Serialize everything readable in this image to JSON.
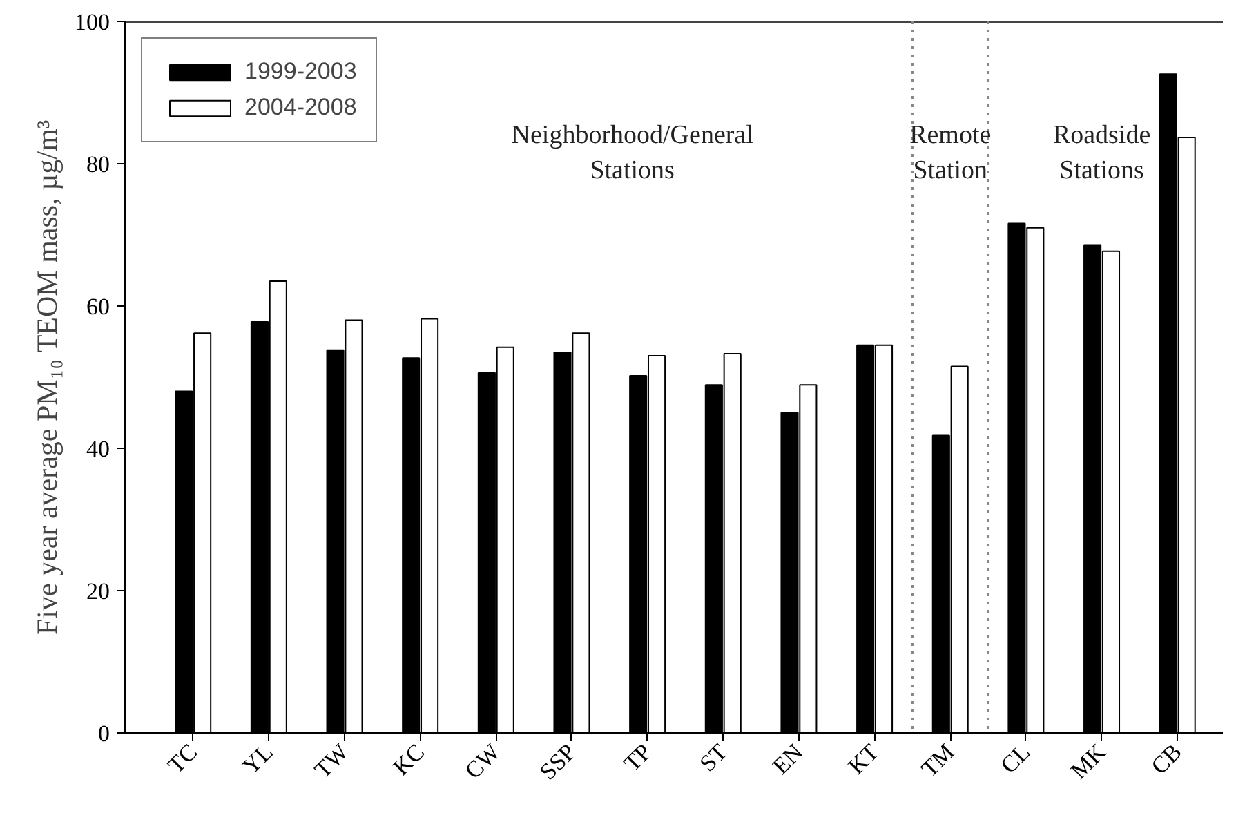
{
  "chart_data": {
    "type": "bar",
    "ylabel": "Five year average PM₁₀ TEOM mass, µg/m³",
    "categories": [
      "TC",
      "YL",
      "TW",
      "KC",
      "CW",
      "SSP",
      "TP",
      "ST",
      "EN",
      "KT",
      "TM",
      "CL",
      "MK",
      "CB"
    ],
    "series": [
      {
        "name": "1999-2003",
        "color": "#000000",
        "values": [
          48,
          57.8,
          53.8,
          52.7,
          50.6,
          53.5,
          50.2,
          48.9,
          45,
          54.5,
          41.8,
          71.6,
          68.6,
          92.6
        ]
      },
      {
        "name": "2004-2008",
        "color": "#ffffff",
        "values": [
          56.2,
          63.5,
          58,
          58.2,
          54.2,
          56.2,
          53,
          53.3,
          48.9,
          54.5,
          51.5,
          71,
          67.7,
          83.7
        ]
      }
    ],
    "ylim": [
      0,
      100
    ],
    "yticks": [
      0,
      20,
      40,
      60,
      80,
      100
    ],
    "grid": false,
    "legend": "top left",
    "annotations": [
      "Neighborhood/General\nStations",
      "Remote\nStation",
      "Roadside\nStations"
    ]
  }
}
